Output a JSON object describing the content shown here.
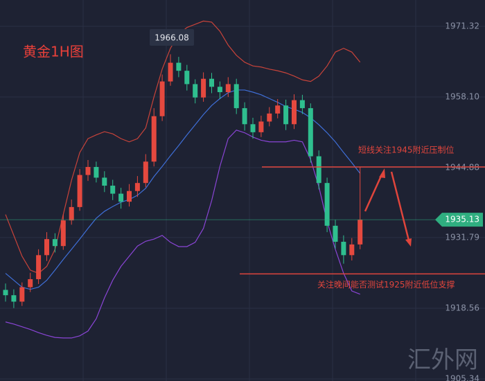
{
  "chart_data": {
    "type": "candlestick",
    "title": "黄金1H图",
    "open": [
      1922.0,
      1921.0,
      1919.8,
      1922.5,
      1924.0,
      1928.5,
      1931.5,
      1930.2,
      1935.0,
      1937.5,
      1943.5,
      1945.0,
      1943.0,
      1941.5,
      1940.0,
      1938.5,
      1940.5,
      1942.0,
      1946.0,
      1954.5,
      1961.0,
      1964.5,
      1963.0,
      1960.5,
      1958.0,
      1961.5,
      1960.0,
      1959.0,
      1960.5,
      1956.0,
      1953.0,
      1951.5,
      1953.5,
      1955.0,
      1956.5,
      1953.0,
      1957.5,
      1956.0,
      1947.0,
      1942.0,
      1934.0,
      1931.0,
      1928.5,
      1930.5
    ],
    "high": [
      1923.2,
      1922.1,
      1923.4,
      1925.2,
      1929.6,
      1932.8,
      1932.6,
      1936.1,
      1938.9,
      1944.6,
      1946.3,
      1946.0,
      1944.2,
      1942.6,
      1941.1,
      1941.8,
      1943.3,
      1947.4,
      1956.0,
      1962.3,
      1966.08,
      1965.6,
      1964.1,
      1961.4,
      1962.7,
      1962.6,
      1961.0,
      1961.8,
      1961.5,
      1957.1,
      1954.2,
      1954.6,
      1956.2,
      1957.7,
      1957.6,
      1958.6,
      1958.5,
      1956.9,
      1948.1,
      1943.0,
      1935.1,
      1932.2,
      1931.7,
      1945.0
    ],
    "low": [
      1919.8,
      1918.6,
      1919.0,
      1921.6,
      1923.1,
      1927.4,
      1929.0,
      1929.5,
      1934.2,
      1936.8,
      1942.4,
      1942.1,
      1940.3,
      1938.8,
      1937.2,
      1937.6,
      1939.4,
      1941.2,
      1945.1,
      1953.6,
      1960.2,
      1961.8,
      1959.3,
      1956.9,
      1957.2,
      1958.8,
      1957.7,
      1958.1,
      1954.9,
      1951.8,
      1950.3,
      1950.6,
      1952.6,
      1954.1,
      1951.9,
      1952.1,
      1954.9,
      1945.8,
      1940.8,
      1932.8,
      1929.7,
      1926.9,
      1927.5,
      1929.6
    ],
    "close": [
      1921.0,
      1919.8,
      1922.5,
      1924.0,
      1928.5,
      1931.5,
      1930.2,
      1935.0,
      1937.5,
      1943.5,
      1945.0,
      1943.0,
      1941.5,
      1940.0,
      1938.5,
      1940.5,
      1942.0,
      1946.0,
      1954.5,
      1961.0,
      1964.5,
      1963.0,
      1960.5,
      1958.0,
      1961.5,
      1960.0,
      1959.0,
      1960.5,
      1956.0,
      1953.0,
      1951.5,
      1953.5,
      1955.0,
      1956.5,
      1953.0,
      1957.5,
      1956.0,
      1947.0,
      1942.0,
      1934.0,
      1931.0,
      1928.5,
      1930.5,
      1935.13
    ],
    "up_color": "#e5493f",
    "down_color": "#2fbf8f",
    "series": [
      {
        "color": "#c8433a",
        "values": [
          1936.1,
          1932.2,
          1928.3,
          1925.7,
          1925.1,
          1926.4,
          1929.6,
          1936.1,
          1942.5,
          1947.7,
          1950.3,
          1951.0,
          1951.6,
          1951.2,
          1950.3,
          1949.7,
          1950.3,
          1952.3,
          1958.1,
          1963.3,
          1967.2,
          1969.8,
          1971.1,
          1971.7,
          1972.3,
          1972.1,
          1970.4,
          1967.8,
          1965.9,
          1964.6,
          1963.9,
          1963.7,
          1963.3,
          1963.0,
          1962.6,
          1962.0,
          1961.3,
          1961.0,
          1962.0,
          1963.9,
          1966.5,
          1967.2,
          1966.5,
          1964.6
        ]
      },
      {
        "color": "#3f6fd8",
        "values": [
          1925.1,
          1923.8,
          1922.5,
          1922.1,
          1922.5,
          1923.8,
          1925.7,
          1927.7,
          1929.6,
          1931.5,
          1933.5,
          1935.4,
          1936.7,
          1937.6,
          1938.4,
          1938.9,
          1939.7,
          1941.0,
          1943.2,
          1945.1,
          1947.1,
          1949.0,
          1951.0,
          1952.9,
          1954.8,
          1956.5,
          1957.8,
          1958.9,
          1959.4,
          1959.4,
          1959.0,
          1958.5,
          1957.8,
          1957.1,
          1956.3,
          1955.8,
          1955.2,
          1954.2,
          1952.9,
          1951.4,
          1949.7,
          1947.7,
          1945.8,
          1943.8
        ]
      },
      {
        "color": "#8a45d6",
        "values": [
          1916.0,
          1915.6,
          1915.1,
          1914.6,
          1914.0,
          1913.5,
          1913.1,
          1913.0,
          1913.0,
          1913.4,
          1914.3,
          1916.6,
          1920.5,
          1923.8,
          1926.4,
          1928.3,
          1930.2,
          1931.1,
          1931.5,
          1932.2,
          1930.9,
          1930.1,
          1930.1,
          1930.9,
          1933.5,
          1938.7,
          1945.1,
          1950.3,
          1951.9,
          1951.4,
          1950.6,
          1950.0,
          1949.7,
          1949.7,
          1949.7,
          1950.0,
          1949.7,
          1946.4,
          1941.3,
          1934.8,
          1929.6,
          1925.1,
          1921.8,
          1921.2
        ]
      }
    ],
    "ylim": [
      1904.95,
      1976.24
    ],
    "yticks": [
      1971.32,
      {
        "value": 1958.1,
        "label": "1958.10"
      },
      1944.88,
      1931.79,
      1918.56,
      1905.34
    ],
    "grid": true,
    "last_price_color": "#2fae80",
    "annotations": [
      {
        "text": "短线关注1945附近压制位",
        "level": 1945
      },
      {
        "text": "关注晚间能否测试1925附近低位支撑",
        "level": 1925
      }
    ],
    "annotation_color": "#e0453c",
    "watermark": "汇外网"
  }
}
